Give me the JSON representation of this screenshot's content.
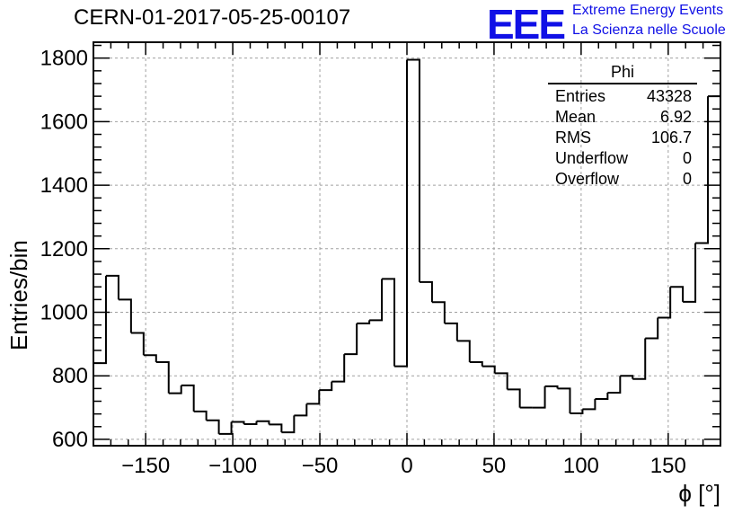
{
  "header": {
    "run_title": "CERN-01-2017-05-25-00107",
    "logo_text": "EEE",
    "logo_line1": "Extreme Energy Events",
    "logo_line2": "La Scienza nelle Scuole"
  },
  "stats_box": {
    "title": "Phi",
    "rows": [
      {
        "label": "Entries",
        "value": "43328"
      },
      {
        "label": "Mean",
        "value": "6.92"
      },
      {
        "label": "RMS",
        "value": "106.7"
      },
      {
        "label": "Underflow",
        "value": "0"
      },
      {
        "label": "Overflow",
        "value": "0"
      }
    ]
  },
  "colors": {
    "line": "#000000",
    "grid": "#a0a0a0",
    "logo": "#1010e6"
  },
  "chart_data": {
    "type": "histogram",
    "title": "CERN-01-2017-05-25-00107",
    "xlabel": "ϕ [°]",
    "ylabel": "Entries/bin",
    "xlim": [
      -180,
      180
    ],
    "ylim": [
      580,
      1850
    ],
    "bin_width": 7.2,
    "x_ticks": [
      -150,
      -100,
      -50,
      0,
      50,
      100,
      150
    ],
    "x_tick_labels": [
      "−150",
      "−100",
      "−50",
      "0",
      "50",
      "100",
      "150"
    ],
    "y_ticks": [
      600,
      800,
      1000,
      1200,
      1400,
      1600,
      1800
    ],
    "y_tick_labels": [
      "600",
      "800",
      "1000",
      "1200",
      "1400",
      "1600",
      "1800"
    ],
    "grid": true,
    "values": [
      840,
      1115,
      1040,
      935,
      865,
      843,
      745,
      770,
      688,
      660,
      617,
      655,
      648,
      657,
      647,
      622,
      675,
      712,
      755,
      782,
      868,
      965,
      975,
      1105,
      830,
      1795,
      1095,
      1032,
      965,
      910,
      843,
      830,
      808,
      757,
      700,
      700,
      767,
      760,
      682,
      695,
      727,
      747,
      800,
      790,
      918,
      983,
      1080,
      1033,
      1218,
      1680
    ]
  }
}
